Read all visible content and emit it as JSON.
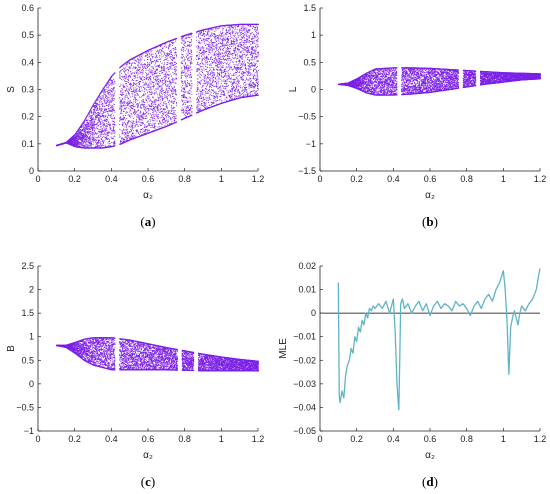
{
  "figure": {
    "colors": {
      "bifurcation": "#7b1fe8",
      "mle_line": "#5fb3c9",
      "axis": "#222222"
    }
  },
  "chart_data": [
    {
      "id": "a",
      "caption_letter": "a",
      "type": "scatter",
      "xlabel": "α₂",
      "ylabel": "S",
      "xlim": [
        0,
        1.2
      ],
      "ylim": [
        0,
        0.6
      ],
      "xticks": [
        "0",
        "0.2",
        "0.4",
        "0.6",
        "0.8",
        "1",
        "1.2"
      ],
      "yticks": [
        "0",
        "0.1",
        "0.2",
        "0.3",
        "0.4",
        "0.5",
        "0.6"
      ],
      "envelope_x": [
        0.1,
        0.15,
        0.2,
        0.25,
        0.3,
        0.35,
        0.4,
        0.45,
        0.5,
        0.6,
        0.7,
        0.8,
        0.9,
        1.0,
        1.1,
        1.2
      ],
      "envelope_upper": [
        0.095,
        0.105,
        0.135,
        0.185,
        0.245,
        0.3,
        0.35,
        0.385,
        0.41,
        0.445,
        0.475,
        0.5,
        0.52,
        0.535,
        0.54,
        0.54
      ],
      "envelope_lower": [
        0.095,
        0.105,
        0.09,
        0.085,
        0.085,
        0.085,
        0.09,
        0.1,
        0.115,
        0.14,
        0.165,
        0.195,
        0.225,
        0.25,
        0.27,
        0.28
      ],
      "gaps_x": [
        0.43,
        0.765,
        0.85
      ],
      "grid": false
    },
    {
      "id": "b",
      "caption_letter": "b",
      "type": "scatter",
      "xlabel": "α₂",
      "ylabel": "L",
      "xlim": [
        0,
        1.2
      ],
      "ylim": [
        -1.5,
        1.5
      ],
      "xticks": [
        "0",
        "0.2",
        "0.4",
        "0.6",
        "0.8",
        "1",
        "1.2"
      ],
      "yticks": [
        "-1.5",
        "-1",
        "-0.5",
        "0",
        "0.5",
        "1",
        "1.5"
      ],
      "envelope_x": [
        0.1,
        0.15,
        0.2,
        0.25,
        0.3,
        0.4,
        0.5,
        0.6,
        0.7,
        0.8,
        0.9,
        1.0,
        1.1,
        1.2
      ],
      "envelope_upper": [
        0.1,
        0.12,
        0.2,
        0.3,
        0.38,
        0.4,
        0.4,
        0.39,
        0.37,
        0.35,
        0.33,
        0.31,
        0.3,
        0.29
      ],
      "envelope_lower": [
        0.1,
        0.08,
        0.02,
        -0.06,
        -0.1,
        -0.1,
        -0.08,
        -0.05,
        0.0,
        0.05,
        0.1,
        0.14,
        0.18,
        0.2
      ],
      "gaps_x": [
        0.43,
        0.765,
        0.86
      ],
      "grid": false
    },
    {
      "id": "c",
      "caption_letter": "c",
      "type": "scatter",
      "xlabel": "α₂",
      "ylabel": "B",
      "xlim": [
        0,
        1.2
      ],
      "ylim": [
        -1,
        2.5
      ],
      "xticks": [
        "0",
        "0.2",
        "0.4",
        "0.6",
        "0.8",
        "1",
        "1.2"
      ],
      "yticks": [
        "-1",
        "-0.5",
        "0",
        "0.5",
        "1",
        "1.5",
        "2",
        "2.5"
      ],
      "envelope_x": [
        0.1,
        0.15,
        0.2,
        0.25,
        0.3,
        0.4,
        0.5,
        0.6,
        0.7,
        0.8,
        0.9,
        1.0,
        1.1,
        1.2
      ],
      "envelope_upper": [
        0.82,
        0.82,
        0.88,
        0.95,
        0.98,
        0.98,
        0.93,
        0.85,
        0.77,
        0.7,
        0.63,
        0.57,
        0.52,
        0.48
      ],
      "envelope_lower": [
        0.82,
        0.78,
        0.65,
        0.5,
        0.4,
        0.3,
        0.3,
        0.3,
        0.3,
        0.29,
        0.28,
        0.28,
        0.28,
        0.28
      ],
      "gaps_x": [
        0.43,
        0.77,
        0.86
      ],
      "grid": false
    },
    {
      "id": "d",
      "caption_letter": "d",
      "type": "line",
      "xlabel": "α₂",
      "ylabel": "MLE",
      "xlim": [
        0,
        1.2
      ],
      "ylim": [
        -0.05,
        0.02
      ],
      "xticks": [
        "0",
        "0.2",
        "0.4",
        "0.6",
        "0.8",
        "1",
        "1.2"
      ],
      "yticks": [
        "-0.05",
        "-0.04",
        "-0.03",
        "-0.02",
        "-0.01",
        "0",
        "0.01",
        "0.02"
      ],
      "reference_y": 0,
      "x": [
        0.1,
        0.105,
        0.11,
        0.12,
        0.13,
        0.14,
        0.15,
        0.16,
        0.17,
        0.18,
        0.19,
        0.2,
        0.21,
        0.22,
        0.23,
        0.24,
        0.25,
        0.26,
        0.27,
        0.28,
        0.29,
        0.3,
        0.32,
        0.34,
        0.36,
        0.38,
        0.4,
        0.41,
        0.42,
        0.43,
        0.435,
        0.44,
        0.45,
        0.46,
        0.48,
        0.5,
        0.52,
        0.54,
        0.56,
        0.58,
        0.6,
        0.62,
        0.64,
        0.66,
        0.68,
        0.7,
        0.72,
        0.74,
        0.76,
        0.78,
        0.8,
        0.82,
        0.84,
        0.86,
        0.88,
        0.9,
        0.92,
        0.94,
        0.96,
        0.98,
        1.0,
        1.01,
        1.02,
        1.03,
        1.04,
        1.05,
        1.06,
        1.07,
        1.08,
        1.09,
        1.1,
        1.12,
        1.14,
        1.16,
        1.18,
        1.19,
        1.2
      ],
      "y": [
        0.013,
        -0.035,
        -0.038,
        -0.033,
        -0.036,
        -0.026,
        -0.022,
        -0.02,
        -0.015,
        -0.017,
        -0.01,
        -0.012,
        -0.006,
        -0.008,
        -0.003,
        -0.005,
        0.0,
        -0.002,
        0.002,
        0.001,
        0.003,
        0.002,
        0.004,
        0.002,
        0.005,
        0.0,
        0.006,
        -0.008,
        -0.03,
        -0.041,
        -0.02,
        0.004,
        0.006,
        0.002,
        0.004,
        0.0,
        0.003,
        0.005,
        0.001,
        0.004,
        -0.001,
        0.003,
        0.005,
        0.002,
        0.004,
        0.003,
        0.001,
        0.005,
        0.003,
        0.004,
        0.002,
        -0.001,
        0.003,
        0.005,
        0.002,
        0.006,
        0.008,
        0.005,
        0.01,
        0.013,
        0.018,
        0.01,
        -0.003,
        -0.026,
        -0.006,
        -0.002,
        0.001,
        -0.002,
        -0.005,
        0.0,
        0.003,
        0.001,
        0.004,
        0.006,
        0.01,
        0.015,
        0.019
      ],
      "grid": false
    }
  ]
}
